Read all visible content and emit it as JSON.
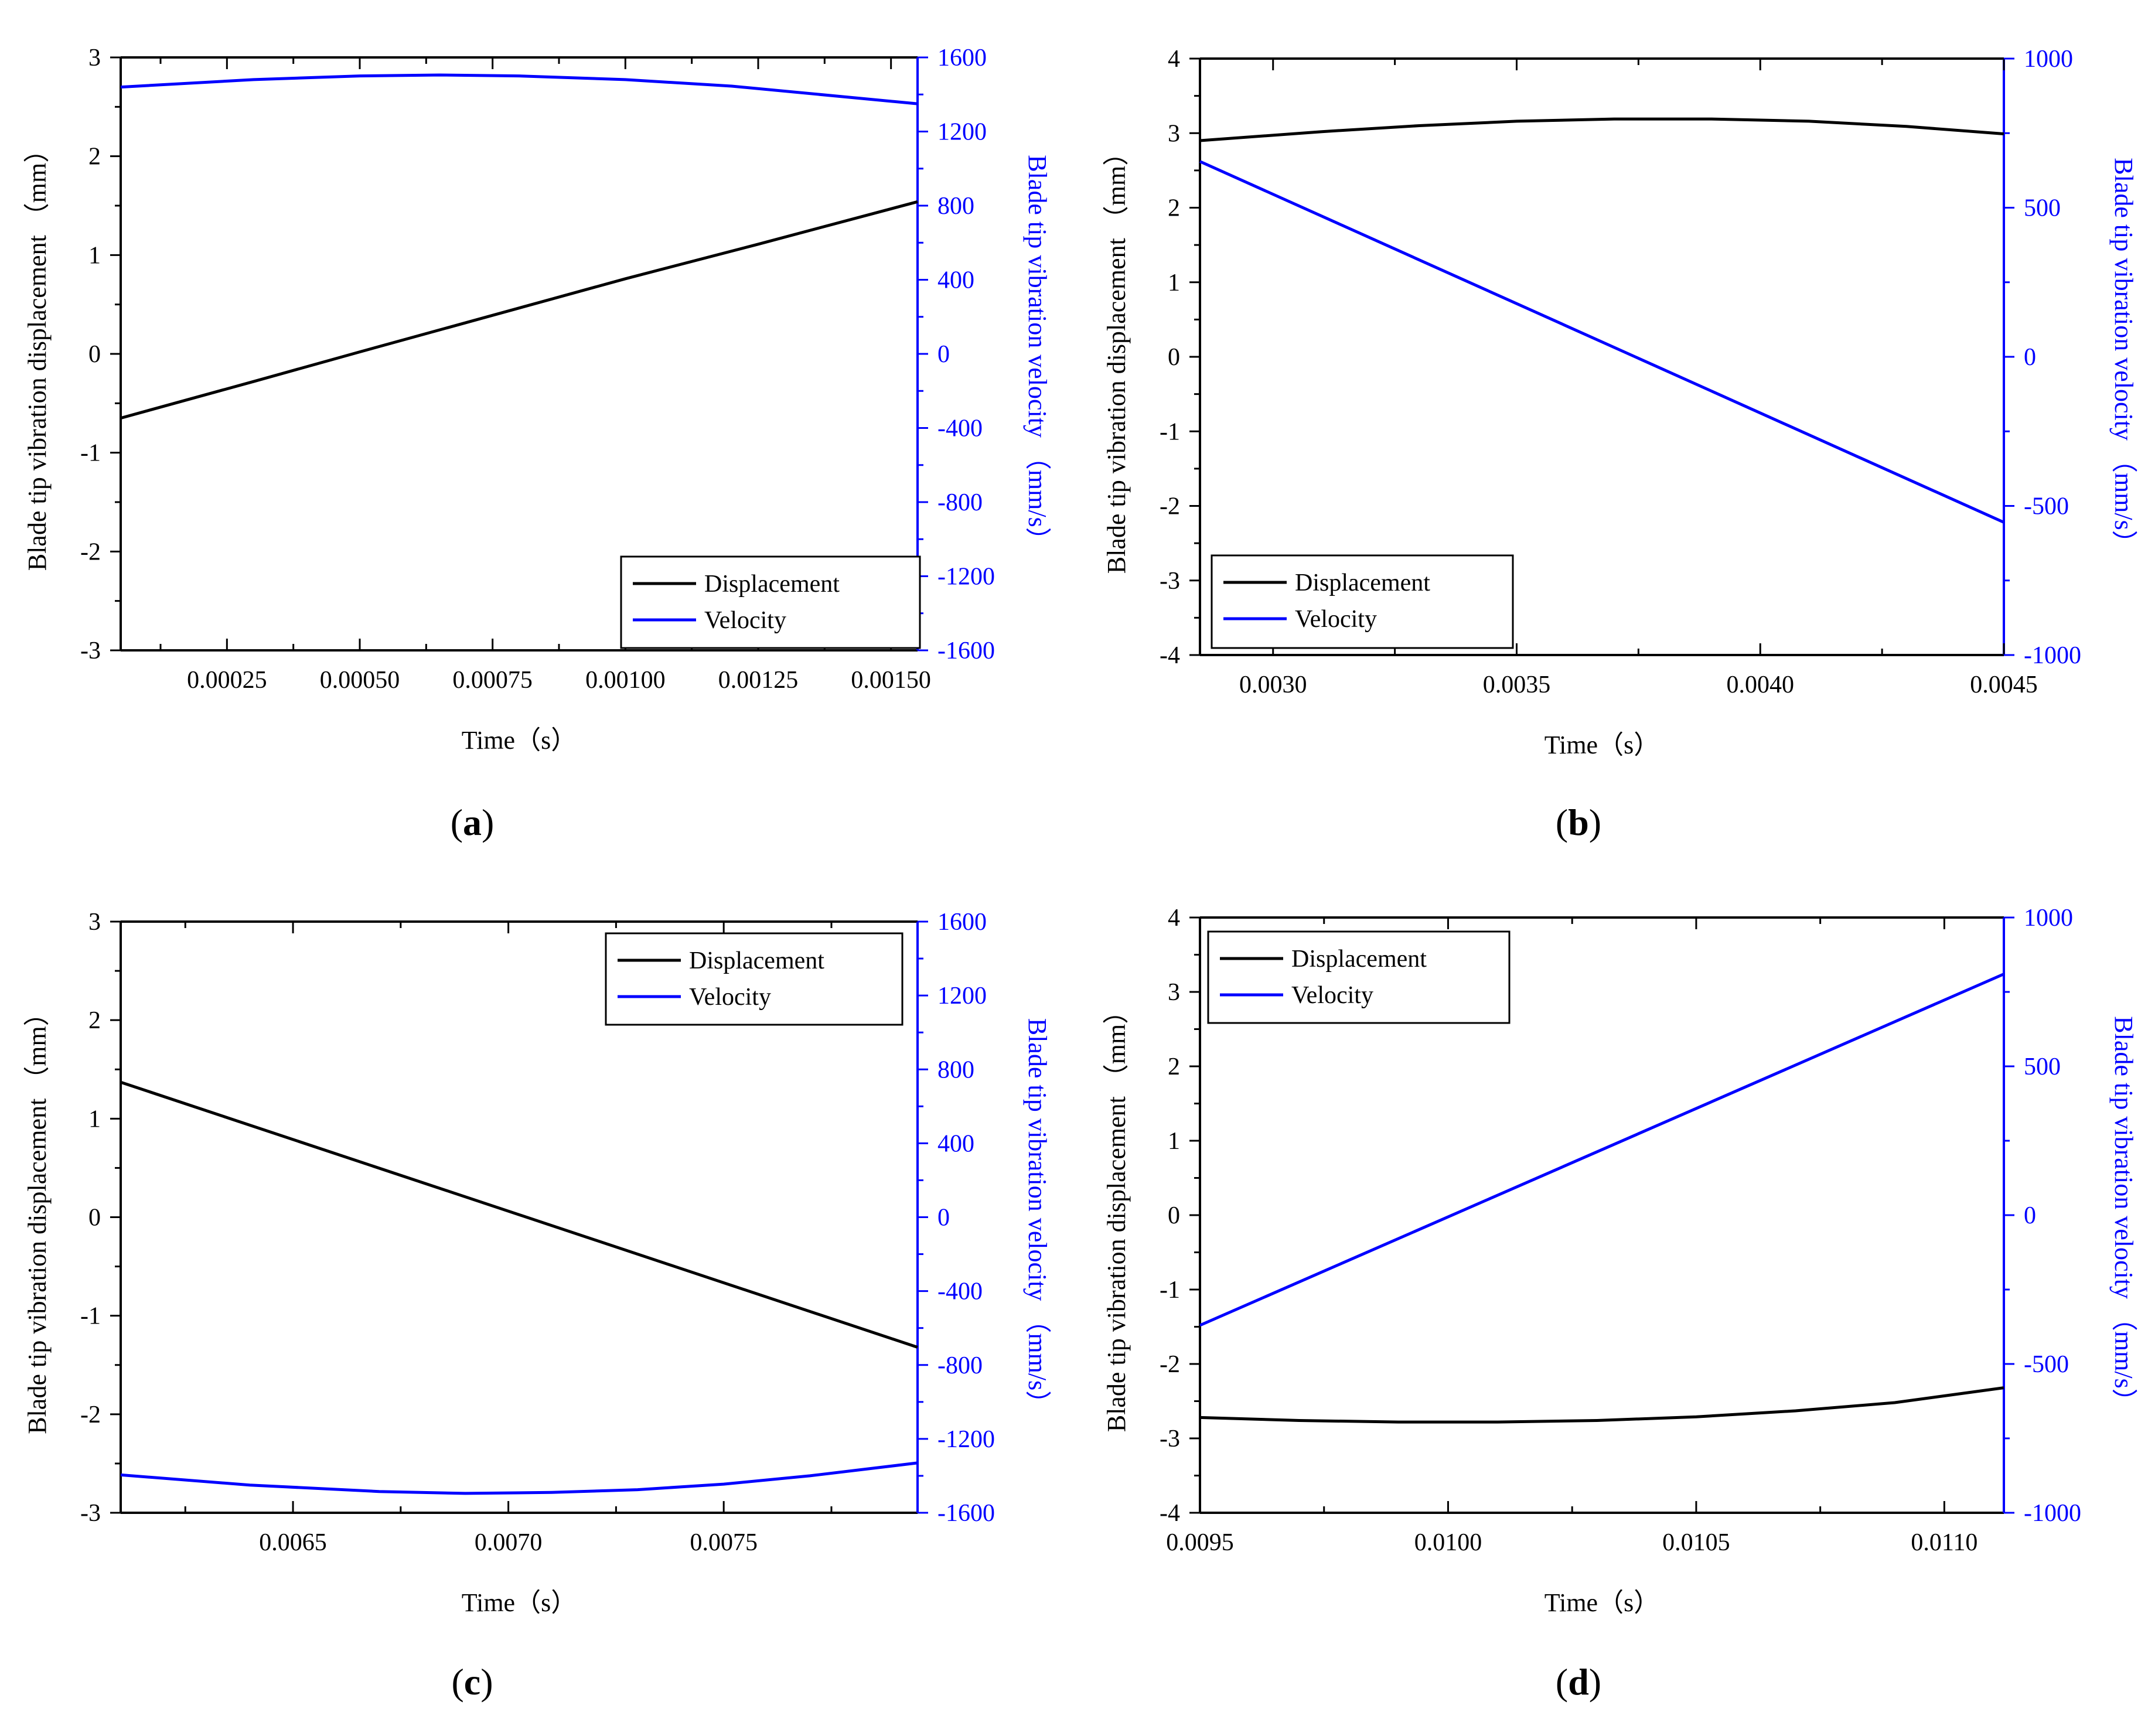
{
  "figure": {
    "colors": {
      "displacement": "#000000",
      "velocity": "#0000ff",
      "frame": "#000000"
    }
  },
  "chart_data": [
    {
      "panel_label": "a",
      "type": "line",
      "xlabel": "Time（s）",
      "ylabel_left": "Blade tip vibration displacement （mm）",
      "ylabel_right": "Blade tip vibration velocity （mm/s）",
      "xlim": [
        5e-05,
        0.00155
      ],
      "xticks": [
        0.00025,
        0.0005,
        0.00075,
        0.001,
        0.00125,
        0.0015
      ],
      "xtick_labels": [
        "0.00025",
        "0.00050",
        "0.00075",
        "0.00100",
        "0.00125",
        "0.00150"
      ],
      "ylim_left": [
        -3,
        3
      ],
      "yticks_left": [
        -3,
        -2,
        -1,
        0,
        1,
        2,
        3
      ],
      "ytick_labels_left": [
        "-3",
        "-2",
        "-1",
        "0",
        "1",
        "2",
        "3"
      ],
      "ylim_right": [
        -1600,
        1600
      ],
      "yticks_right": [
        -1600,
        -1200,
        -800,
        -400,
        0,
        400,
        800,
        1200,
        1600
      ],
      "ytick_labels_right": [
        "-1600",
        "-1200",
        "-800",
        "-400",
        "0",
        "400",
        "800",
        "1200",
        "1600"
      ],
      "legend": {
        "position": "bottom-right",
        "entries": [
          "Displacement",
          "Velocity"
        ]
      },
      "series": [
        {
          "name": "Displacement",
          "axis": "left",
          "x": [
            5e-05,
            0.0003,
            0.0005,
            0.00075,
            0.001,
            0.00125,
            0.00155
          ],
          "y": [
            -0.65,
            -0.28,
            0.02,
            0.39,
            0.76,
            1.11,
            1.54
          ]
        },
        {
          "name": "Velocity",
          "axis": "right",
          "x": [
            5e-05,
            0.0003,
            0.0005,
            0.00065,
            0.0008,
            0.001,
            0.0012,
            0.00155
          ],
          "y": [
            1440,
            1480,
            1500,
            1505,
            1500,
            1480,
            1445,
            1350
          ]
        }
      ]
    },
    {
      "panel_label": "b",
      "type": "line",
      "xlabel": "Time（s）",
      "ylabel_left": "Blade tip vibration displacement （mm）",
      "ylabel_right": "Blade tip vibration velocity （mm/s）",
      "xlim": [
        0.00285,
        0.0045
      ],
      "xticks": [
        0.003,
        0.0035,
        0.004,
        0.0045
      ],
      "xtick_labels": [
        "0.0030",
        "0.0035",
        "0.0040",
        "0.0045"
      ],
      "ylim_left": [
        -4,
        4
      ],
      "yticks_left": [
        -4,
        -3,
        -2,
        -1,
        0,
        1,
        2,
        3,
        4
      ],
      "ytick_labels_left": [
        "-4",
        "-3",
        "-2",
        "-1",
        "0",
        "1",
        "2",
        "3",
        "4"
      ],
      "ylim_right": [
        -1000,
        1000
      ],
      "yticks_right": [
        -1000,
        -500,
        0,
        500,
        1000
      ],
      "ytick_labels_right": [
        "-1000",
        "-500",
        "0",
        "500",
        "1000"
      ],
      "legend": {
        "position": "bottom-left",
        "entries": [
          "Displacement",
          "Velocity"
        ]
      },
      "series": [
        {
          "name": "Displacement",
          "axis": "left",
          "x": [
            0.00285,
            0.0031,
            0.0033,
            0.0035,
            0.0037,
            0.0039,
            0.0041,
            0.0043,
            0.0045
          ],
          "y": [
            2.9,
            3.02,
            3.1,
            3.16,
            3.19,
            3.19,
            3.16,
            3.09,
            2.99
          ]
        },
        {
          "name": "Velocity",
          "axis": "right",
          "x": [
            0.00285,
            0.0045
          ],
          "y": [
            655,
            -555
          ]
        }
      ]
    },
    {
      "panel_label": "c",
      "type": "line",
      "xlabel": "Time（s）",
      "ylabel_left": "Blade tip vibration displacement （mm）",
      "ylabel_right": "Blade tip vibration velocity （mm/s）",
      "xlim": [
        0.0061,
        0.00795
      ],
      "xticks": [
        0.0065,
        0.007,
        0.0075
      ],
      "xtick_labels": [
        "0.0065",
        "0.0070",
        "0.0075"
      ],
      "ylim_left": [
        -3,
        3
      ],
      "yticks_left": [
        -3,
        -2,
        -1,
        0,
        1,
        2,
        3
      ],
      "ytick_labels_left": [
        "-3",
        "-2",
        "-1",
        "0",
        "1",
        "2",
        "3"
      ],
      "ylim_right": [
        -1600,
        1600
      ],
      "yticks_right": [
        -1600,
        -1200,
        -800,
        -400,
        0,
        400,
        800,
        1200,
        1600
      ],
      "ytick_labels_right": [
        "-1600",
        "-1200",
        "-800",
        "-400",
        "0",
        "400",
        "800",
        "1200",
        "1600"
      ],
      "legend": {
        "position": "top-right",
        "entries": [
          "Displacement",
          "Velocity"
        ]
      },
      "series": [
        {
          "name": "Displacement",
          "axis": "left",
          "x": [
            0.0061,
            0.00795
          ],
          "y": [
            1.37,
            -1.32
          ]
        },
        {
          "name": "Velocity",
          "axis": "right",
          "x": [
            0.0061,
            0.0064,
            0.0067,
            0.0069,
            0.0071,
            0.0073,
            0.0075,
            0.0077,
            0.00795
          ],
          "y": [
            -1395,
            -1450,
            -1485,
            -1495,
            -1490,
            -1475,
            -1445,
            -1400,
            -1330
          ]
        }
      ]
    },
    {
      "panel_label": "d",
      "type": "line",
      "xlabel": "Time（s）",
      "ylabel_left": "Blade tip vibration displacement （mm）",
      "ylabel_right": "Blade tip vibration velocity （mm/s）",
      "xlim": [
        0.0095,
        0.01112
      ],
      "xticks": [
        0.0095,
        0.01,
        0.0105,
        0.011
      ],
      "xtick_labels": [
        "0.0095",
        "0.0100",
        "0.0105",
        "0.0110"
      ],
      "ylim_left": [
        -4,
        4
      ],
      "yticks_left": [
        -4,
        -3,
        -2,
        -1,
        0,
        1,
        2,
        3,
        4
      ],
      "ytick_labels_left": [
        "-4",
        "-3",
        "-2",
        "-1",
        "0",
        "1",
        "2",
        "3",
        "4"
      ],
      "ylim_right": [
        -1000,
        1000
      ],
      "yticks_right": [
        -1000,
        -500,
        0,
        500,
        1000
      ],
      "ytick_labels_right": [
        "-1000",
        "-500",
        "0",
        "500",
        "1000"
      ],
      "legend": {
        "position": "top-left",
        "entries": [
          "Displacement",
          "Velocity"
        ]
      },
      "series": [
        {
          "name": "Displacement",
          "axis": "left",
          "x": [
            0.0095,
            0.0097,
            0.0099,
            0.0101,
            0.0103,
            0.0105,
            0.0107,
            0.0109,
            0.01112
          ],
          "y": [
            -2.72,
            -2.76,
            -2.78,
            -2.78,
            -2.76,
            -2.71,
            -2.63,
            -2.52,
            -2.32
          ]
        },
        {
          "name": "Velocity",
          "axis": "right",
          "x": [
            0.0095,
            0.01112
          ],
          "y": [
            -370,
            810
          ]
        }
      ]
    }
  ]
}
